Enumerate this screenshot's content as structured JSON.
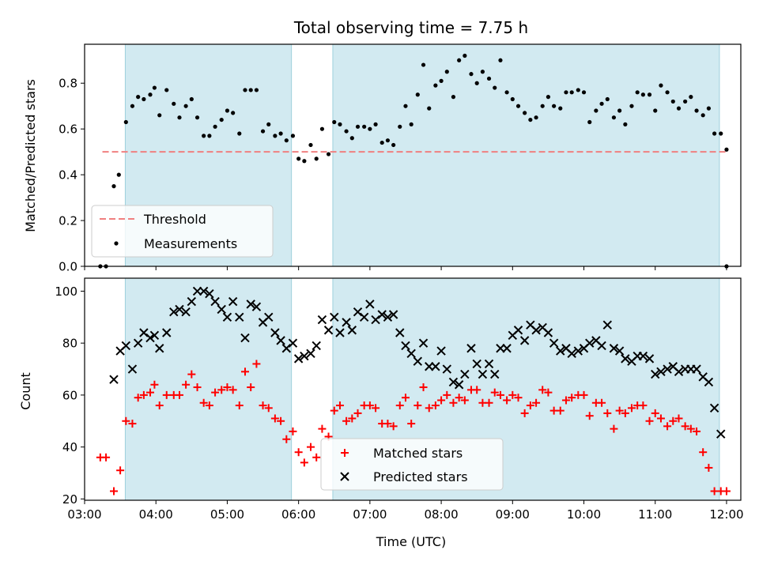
{
  "chart_data": [
    {
      "type": "scatter",
      "title": "Total observing time = 7.75 h",
      "ylabel": "Matched/Predicted stars",
      "xlabel": "",
      "xlim": [
        3.0,
        12.2
      ],
      "ylim": [
        0.0,
        0.97
      ],
      "yticks": [
        0.0,
        0.2,
        0.4,
        0.6,
        0.8
      ],
      "ytick_labels": [
        "0.0",
        "0.2",
        "0.4",
        "0.6",
        "0.8"
      ],
      "xticks": [
        3,
        4,
        5,
        6,
        7,
        8,
        9,
        10,
        11,
        12
      ],
      "xtick_labels": [],
      "shaded_intervals": [
        [
          3.57,
          5.9
        ],
        [
          6.48,
          11.9
        ]
      ],
      "legend_position": "lower-left",
      "threshold": {
        "name": "Threshold",
        "y": 0.5,
        "x": [
          3.25,
          12.0
        ],
        "color": "#f08080",
        "style": "dashed"
      },
      "series": [
        {
          "name": "Measurements",
          "color": "#000000",
          "marker": "dot",
          "x": [
            3.22,
            3.3,
            3.41,
            3.48,
            3.58,
            3.67,
            3.75,
            3.83,
            3.92,
            3.98,
            4.05,
            4.15,
            4.25,
            4.33,
            4.42,
            4.5,
            4.58,
            4.67,
            4.75,
            4.83,
            4.92,
            5.0,
            5.08,
            5.17,
            5.25,
            5.33,
            5.41,
            5.5,
            5.58,
            5.67,
            5.75,
            5.83,
            5.92,
            6.0,
            6.08,
            6.17,
            6.25,
            6.33,
            6.42,
            6.5,
            6.58,
            6.67,
            6.75,
            6.83,
            6.92,
            7.0,
            7.08,
            7.17,
            7.25,
            7.33,
            7.42,
            7.5,
            7.58,
            7.67,
            7.75,
            7.83,
            7.92,
            8.0,
            8.08,
            8.17,
            8.25,
            8.33,
            8.42,
            8.5,
            8.58,
            8.67,
            8.75,
            8.83,
            8.92,
            9.0,
            9.08,
            9.17,
            9.25,
            9.33,
            9.42,
            9.5,
            9.58,
            9.67,
            9.75,
            9.83,
            9.92,
            10.0,
            10.08,
            10.17,
            10.25,
            10.33,
            10.42,
            10.5,
            10.58,
            10.67,
            10.75,
            10.83,
            10.92,
            11.0,
            11.08,
            11.17,
            11.25,
            11.33,
            11.42,
            11.5,
            11.58,
            11.67,
            11.75,
            11.83,
            11.92,
            12.0
          ],
          "y": [
            0.0,
            0.0,
            0.35,
            0.4,
            0.63,
            0.7,
            0.74,
            0.73,
            0.75,
            0.78,
            0.66,
            0.77,
            0.71,
            0.65,
            0.7,
            0.73,
            0.65,
            0.57,
            0.57,
            0.61,
            0.64,
            0.68,
            0.67,
            0.58,
            0.77,
            0.77,
            0.77,
            0.59,
            0.62,
            0.57,
            0.58,
            0.55,
            0.57,
            0.47,
            0.46,
            0.53,
            0.47,
            0.6,
            0.49,
            0.63,
            0.62,
            0.59,
            0.56,
            0.61,
            0.61,
            0.6,
            0.62,
            0.54,
            0.55,
            0.53,
            0.61,
            0.7,
            0.62,
            0.75,
            0.88,
            0.69,
            0.79,
            0.81,
            0.85,
            0.74,
            0.9,
            0.92,
            0.84,
            0.8,
            0.85,
            0.82,
            0.78,
            0.9,
            0.76,
            0.73,
            0.7,
            0.67,
            0.64,
            0.65,
            0.7,
            0.74,
            0.7,
            0.69,
            0.76,
            0.76,
            0.77,
            0.76,
            0.63,
            0.68,
            0.71,
            0.73,
            0.65,
            0.68,
            0.62,
            0.7,
            0.76,
            0.75,
            0.75,
            0.68,
            0.79,
            0.76,
            0.72,
            0.69,
            0.72,
            0.74,
            0.68,
            0.66,
            0.69,
            0.58,
            0.58,
            0.51
          ]
        },
        {
          "name": "",
          "color": "#000000",
          "marker": "dot",
          "x": [
            12.0
          ],
          "y": [
            0.0
          ]
        }
      ]
    },
    {
      "type": "scatter",
      "title": "",
      "ylabel": "Count",
      "xlabel": "Time (UTC)",
      "xlim": [
        3.0,
        12.2
      ],
      "ylim": [
        19.5,
        105.0
      ],
      "yticks": [
        20,
        40,
        60,
        80,
        100
      ],
      "ytick_labels": [
        "20",
        "40",
        "60",
        "80",
        "100"
      ],
      "xticks": [
        3,
        4,
        5,
        6,
        7,
        8,
        9,
        10,
        11,
        12
      ],
      "xtick_labels": [
        "03:00",
        "04:00",
        "05:00",
        "06:00",
        "07:00",
        "08:00",
        "09:00",
        "10:00",
        "11:00",
        "12:00"
      ],
      "shaded_intervals": [
        [
          3.57,
          5.9
        ],
        [
          6.48,
          11.9
        ]
      ],
      "legend_position": "lower-center",
      "series": [
        {
          "name": "Matched stars",
          "color": "#ff0000",
          "marker": "plus",
          "x": [
            3.22,
            3.3,
            3.41,
            3.5,
            3.58,
            3.67,
            3.75,
            3.83,
            3.92,
            3.98,
            4.05,
            4.15,
            4.25,
            4.33,
            4.42,
            4.5,
            4.58,
            4.67,
            4.75,
            4.83,
            4.92,
            5.0,
            5.08,
            5.17,
            5.25,
            5.33,
            5.41,
            5.5,
            5.58,
            5.67,
            5.75,
            5.83,
            5.92,
            6.0,
            6.08,
            6.17,
            6.25,
            6.33,
            6.42,
            6.5,
            6.58,
            6.67,
            6.75,
            6.83,
            6.92,
            7.0,
            7.08,
            7.17,
            7.25,
            7.33,
            7.42,
            7.5,
            7.58,
            7.67,
            7.75,
            7.83,
            7.92,
            8.0,
            8.08,
            8.17,
            8.25,
            8.33,
            8.42,
            8.5,
            8.58,
            8.67,
            8.75,
            8.83,
            8.92,
            9.0,
            9.08,
            9.17,
            9.25,
            9.33,
            9.42,
            9.5,
            9.58,
            9.67,
            9.75,
            9.83,
            9.92,
            10.0,
            10.08,
            10.17,
            10.25,
            10.33,
            10.42,
            10.5,
            10.58,
            10.67,
            10.75,
            10.83,
            10.92,
            11.0,
            11.08,
            11.17,
            11.25,
            11.33,
            11.42,
            11.5,
            11.58,
            11.67,
            11.75,
            11.83,
            11.92,
            12.0
          ],
          "y": [
            36,
            36,
            23,
            31,
            50,
            49,
            59,
            60,
            61,
            64,
            56,
            60,
            60,
            60,
            64,
            68,
            63,
            57,
            56,
            61,
            62,
            63,
            62,
            56,
            69,
            63,
            72,
            56,
            55,
            51,
            50,
            43,
            46,
            38,
            34,
            40,
            36,
            47,
            44,
            54,
            56,
            50,
            51,
            53,
            56,
            56,
            55,
            49,
            49,
            48,
            56,
            59,
            49,
            56,
            63,
            55,
            56,
            58,
            60,
            57,
            59,
            58,
            62,
            62,
            57,
            57,
            61,
            60,
            58,
            60,
            59,
            53,
            56,
            57,
            62,
            61,
            54,
            54,
            58,
            59,
            60,
            60,
            52,
            57,
            57,
            53,
            47,
            54,
            53,
            55,
            56,
            56,
            50,
            53,
            51,
            48,
            50,
            51,
            48,
            47,
            46,
            38,
            32,
            23,
            23,
            23
          ]
        },
        {
          "name": "Predicted stars",
          "color": "#000000",
          "marker": "x",
          "x": [
            3.41,
            3.5,
            3.58,
            3.67,
            3.75,
            3.83,
            3.92,
            3.98,
            4.05,
            4.15,
            4.25,
            4.33,
            4.42,
            4.5,
            4.58,
            4.67,
            4.75,
            4.83,
            4.92,
            5.0,
            5.08,
            5.17,
            5.25,
            5.33,
            5.41,
            5.5,
            5.58,
            5.67,
            5.75,
            5.83,
            5.92,
            6.0,
            6.08,
            6.17,
            6.25,
            6.33,
            6.42,
            6.5,
            6.58,
            6.67,
            6.75,
            6.83,
            6.92,
            7.0,
            7.08,
            7.17,
            7.25,
            7.33,
            7.42,
            7.5,
            7.58,
            7.67,
            7.75,
            7.83,
            7.92,
            8.0,
            8.08,
            8.17,
            8.25,
            8.33,
            8.42,
            8.5,
            8.58,
            8.67,
            8.75,
            8.83,
            8.92,
            9.0,
            9.08,
            9.17,
            9.25,
            9.33,
            9.42,
            9.5,
            9.58,
            9.67,
            9.75,
            9.83,
            9.92,
            10.0,
            10.08,
            10.17,
            10.25,
            10.33,
            10.42,
            10.5,
            10.58,
            10.67,
            10.75,
            10.83,
            10.92,
            11.0,
            11.08,
            11.17,
            11.25,
            11.33,
            11.42,
            11.5,
            11.58,
            11.67,
            11.75,
            11.83,
            11.92
          ],
          "y": [
            66,
            77,
            79,
            70,
            80,
            84,
            82,
            83,
            78,
            84,
            92,
            93,
            92,
            96,
            100,
            100,
            99,
            96,
            93,
            90,
            96,
            90,
            82,
            95,
            94,
            88,
            90,
            84,
            81,
            78,
            80,
            74,
            75,
            76,
            79,
            89,
            85,
            90,
            84,
            88,
            85,
            92,
            90,
            95,
            89,
            91,
            90,
            91,
            84,
            79,
            76,
            73,
            80,
            71,
            71,
            77,
            70,
            65,
            64,
            68,
            78,
            72,
            68,
            72,
            68,
            78,
            78,
            83,
            85,
            81,
            87,
            85,
            86,
            84,
            80,
            77,
            78,
            76,
            77,
            78,
            80,
            81,
            79,
            87,
            78,
            77,
            74,
            73,
            75,
            75,
            74,
            68,
            69,
            70,
            71,
            69,
            70,
            70,
            70,
            67,
            65,
            55,
            45
          ]
        }
      ]
    }
  ]
}
